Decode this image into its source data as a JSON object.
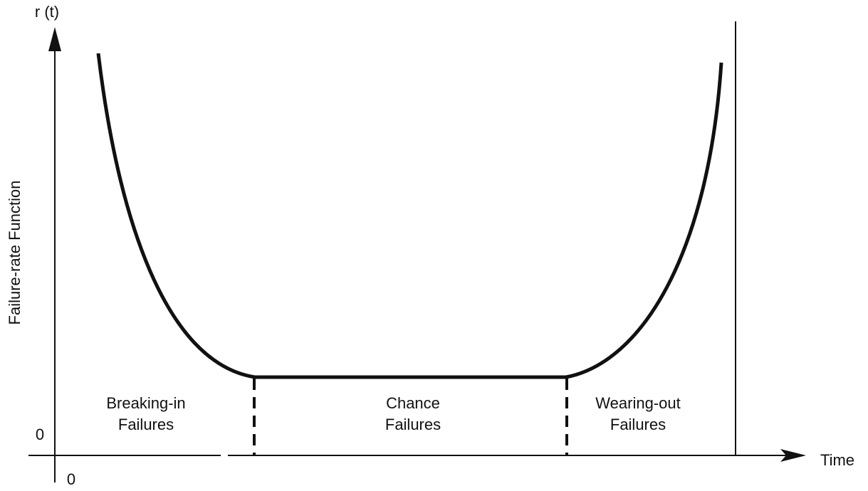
{
  "axes": {
    "y_symbol": "r (t)",
    "y_title": "Failure-rate Function",
    "y_origin": "0",
    "x_origin": "0",
    "x_title": "Time"
  },
  "regions": [
    {
      "lines": [
        "Breaking-in",
        "Failures"
      ]
    },
    {
      "lines": [
        "Chance",
        "Failures"
      ]
    },
    {
      "lines": [
        "Wearing-out",
        "Failures"
      ]
    }
  ]
}
